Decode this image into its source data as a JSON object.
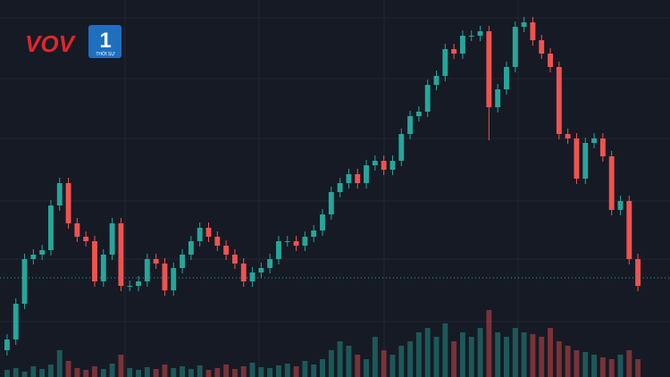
{
  "chart_data": {
    "type": "candlestick",
    "logo": {
      "brand": "VOV",
      "channel": "1",
      "subtitle": "THỜI SỰ"
    },
    "open": [
      30,
      42,
      82,
      132,
      137,
      142,
      192,
      217,
      172,
      157,
      152,
      107,
      137,
      172,
      102,
      102,
      107,
      132,
      127,
      97,
      122,
      137,
      152,
      167,
      157,
      147,
      137,
      127,
      107,
      117,
      122,
      132,
      152,
      152,
      147,
      157,
      164,
      182,
      207,
      217,
      227,
      217,
      237,
      242,
      232,
      242,
      272,
      292,
      297,
      327,
      337,
      367,
      362,
      382,
      382,
      387,
      302,
      322,
      347,
      392,
      397,
      377,
      362,
      347,
      272,
      267,
      222,
      262,
      267,
      247,
      187,
      197,
      132
    ],
    "high": [
      48,
      88,
      138,
      143,
      148,
      198,
      223,
      223,
      178,
      163,
      158,
      143,
      178,
      178,
      108,
      113,
      138,
      138,
      133,
      128,
      143,
      158,
      173,
      173,
      163,
      153,
      143,
      133,
      123,
      128,
      138,
      158,
      158,
      158,
      163,
      170,
      188,
      213,
      223,
      233,
      233,
      243,
      248,
      248,
      248,
      278,
      298,
      303,
      333,
      343,
      373,
      373,
      388,
      388,
      393,
      393,
      328,
      353,
      398,
      403,
      403,
      383,
      368,
      353,
      278,
      273,
      268,
      273,
      273,
      253,
      203,
      203,
      138
    ],
    "low": [
      24,
      36,
      76,
      126,
      131,
      136,
      186,
      166,
      151,
      146,
      101,
      101,
      131,
      96,
      96,
      96,
      101,
      121,
      91,
      91,
      116,
      131,
      146,
      151,
      141,
      131,
      121,
      101,
      101,
      111,
      116,
      126,
      146,
      141,
      141,
      151,
      158,
      176,
      201,
      211,
      211,
      211,
      231,
      226,
      226,
      236,
      266,
      286,
      291,
      321,
      331,
      356,
      356,
      376,
      376,
      265,
      296,
      316,
      341,
      386,
      371,
      356,
      341,
      266,
      261,
      216,
      216,
      256,
      241,
      181,
      181,
      126,
      96
    ],
    "close": [
      42,
      82,
      132,
      137,
      142,
      192,
      217,
      172,
      157,
      152,
      107,
      137,
      172,
      102,
      102,
      107,
      132,
      127,
      97,
      122,
      137,
      152,
      167,
      157,
      147,
      137,
      127,
      107,
      117,
      122,
      132,
      152,
      152,
      147,
      157,
      164,
      182,
      207,
      217,
      227,
      217,
      237,
      242,
      232,
      242,
      272,
      292,
      297,
      327,
      337,
      367,
      362,
      382,
      382,
      387,
      302,
      322,
      347,
      392,
      397,
      377,
      362,
      347,
      272,
      267,
      222,
      262,
      267,
      247,
      187,
      197,
      132,
      102
    ],
    "volume": [
      8,
      10,
      6,
      12,
      9,
      14,
      30,
      18,
      10,
      8,
      12,
      9,
      15,
      25,
      10,
      8,
      11,
      9,
      14,
      10,
      12,
      9,
      13,
      8,
      10,
      14,
      9,
      12,
      16,
      11,
      10,
      13,
      15,
      12,
      18,
      14,
      20,
      30,
      40,
      35,
      25,
      20,
      45,
      30,
      25,
      35,
      40,
      50,
      55,
      45,
      60,
      40,
      50,
      45,
      55,
      75,
      50,
      45,
      55,
      50,
      48,
      45,
      55,
      40,
      35,
      30,
      28,
      25,
      22,
      20,
      25,
      30,
      20
    ],
    "last_price_line": 111,
    "ylim": [
      0,
      422
    ],
    "volume_lim": [
      0,
      422
    ],
    "up_color": "#26a69a",
    "down_color": "#ef5350"
  }
}
